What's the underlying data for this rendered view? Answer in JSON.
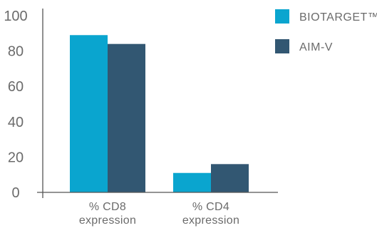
{
  "chart_data": {
    "type": "bar",
    "categories": [
      [
        "% CD8",
        "expression"
      ],
      [
        "% CD4",
        "expression"
      ]
    ],
    "series": [
      {
        "name": "BIOTARGET™",
        "color": "#0aa5cf",
        "values": [
          89,
          11
        ]
      },
      {
        "name": "AIM-V",
        "color": "#325772",
        "values": [
          84,
          16
        ]
      }
    ],
    "yticks": [
      0,
      20,
      40,
      60,
      80,
      100
    ],
    "ylim": [
      0,
      100
    ],
    "legend_position": "top-right",
    "grid": false,
    "axis_color": "#555555",
    "text_color": "#6b6b6b"
  }
}
